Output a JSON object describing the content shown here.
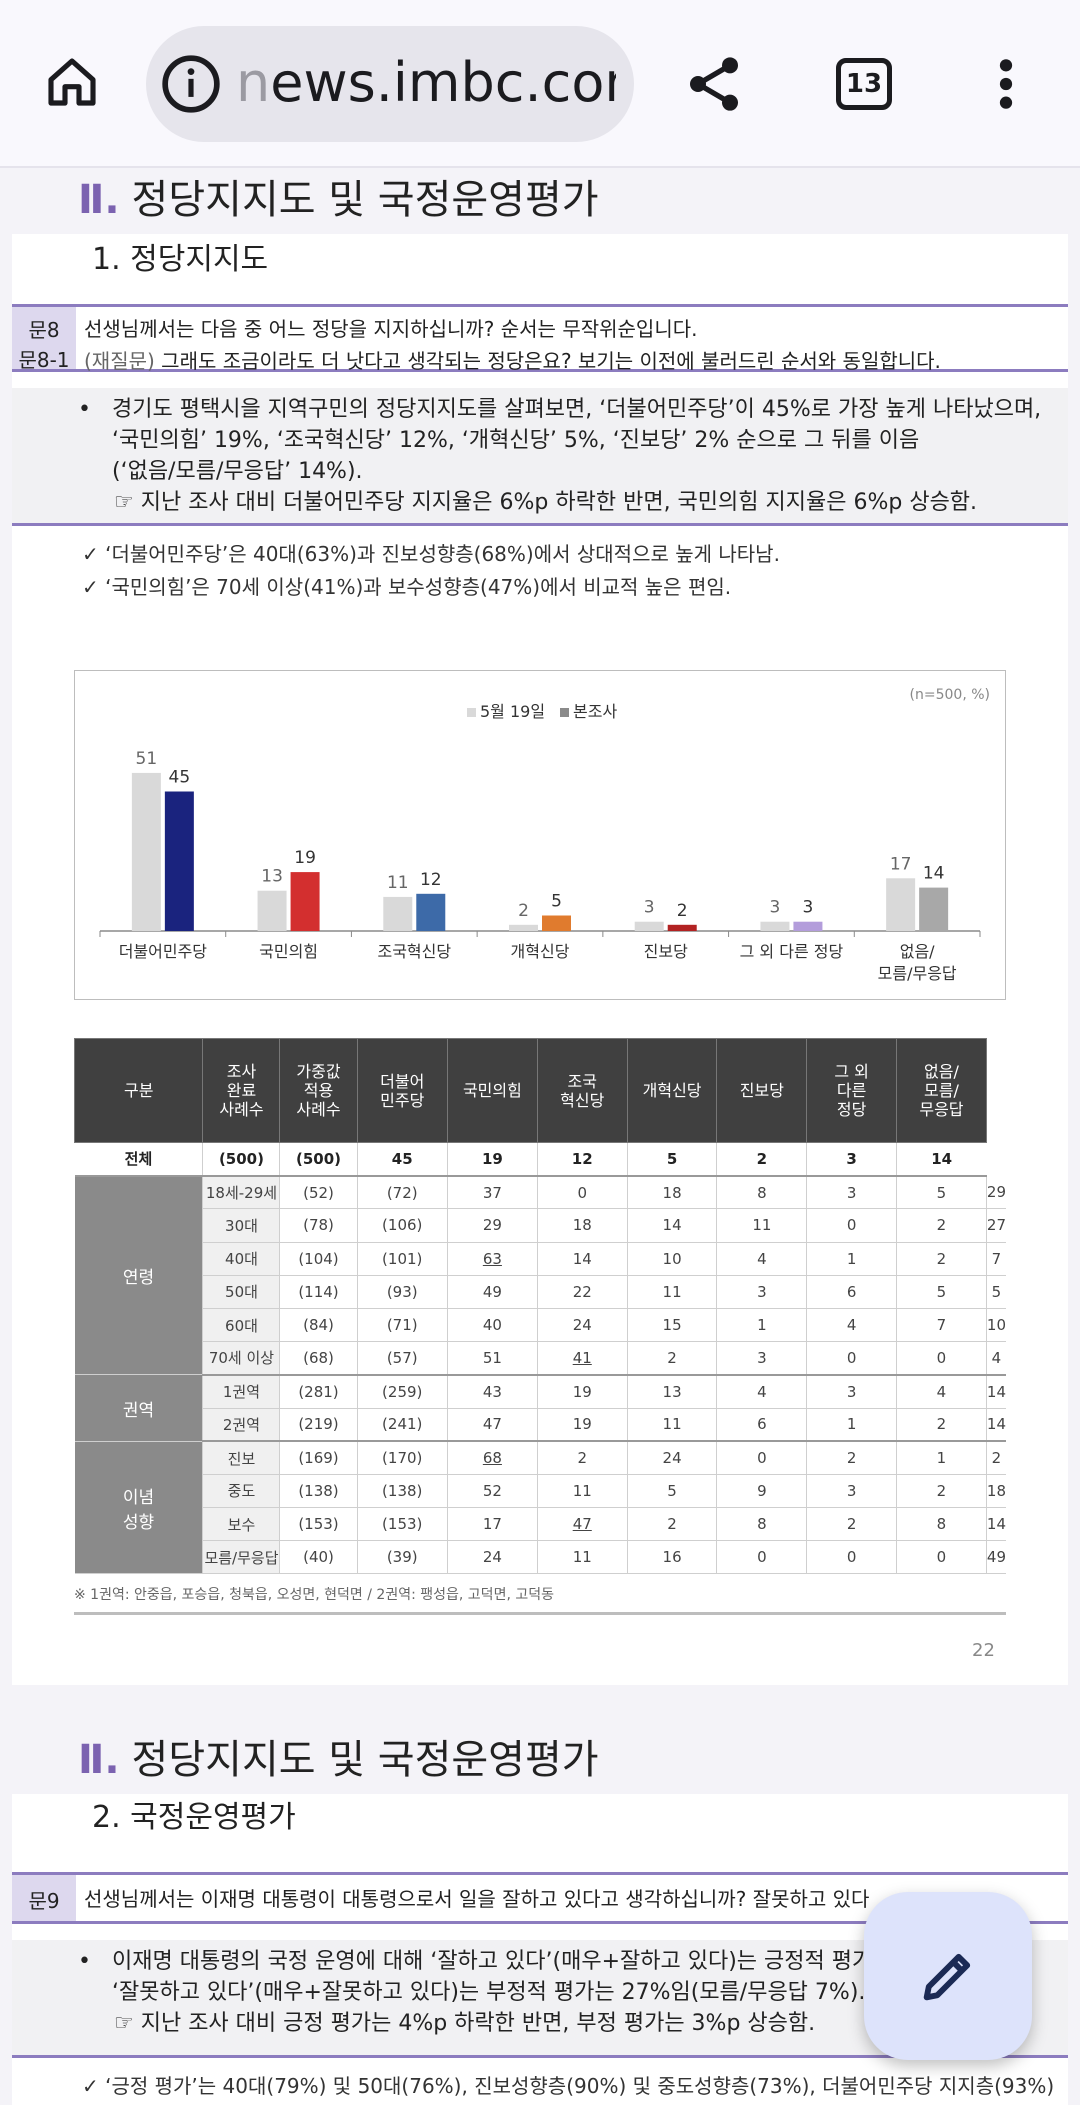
{
  "browser": {
    "url_fade": "n",
    "url": "ews.imbc.com",
    "tab_count": "13"
  },
  "page1": {
    "section_num": "Ⅱ.",
    "section_title": "정당지지도 및 국정운영평가",
    "subtitle": "1. 정당지지도",
    "q_label": [
      "문8",
      "문8-1"
    ],
    "q_line1": "선생님께서는 다음 중 어느 정당을 지지하십니까? 순서는 무작위순입니다.",
    "q_line2_gray": "(재질문)",
    "q_line2": " 그래도 조금이라도 더 낫다고 생각되는 정당은요? 보기는 이전에 불러드린 순서와 동일합니다.",
    "bullet": "•",
    "summary": [
      "경기도 평택시을 지역구민의 정당지지도를 살펴보면, ‘더불어민주당’이 45%로 가장 높게 나타났으며,",
      "‘국민의힘’ 19%, ‘조국혁신당’ 12%, ‘개혁신당’ 5%, ‘진보당’ 2% 순으로 그 뒤를 이음",
      "(‘없음/모름/무응답’ 14%)."
    ],
    "summary_point": "☞ 지난 조사 대비 더불어민주당 지지율은 6%p 하락한 반면, 국민의힘 지지율은 6%p 상승함.",
    "checks": [
      "✓ ‘더불어민주당’은 40대(63%)과 진보성향층(68%)에서 상대적으로 높게 나타남.",
      "✓ ‘국민의힘’은 70세 이상(41%)과 보수성향층(47%)에서 비교적 높은 편임."
    ],
    "footnote": "※ 1권역: 안중읍, 포승읍, 청북읍, 오성면, 현덕면 / 2권역: 팽성읍, 고덕면, 고덕동",
    "page_number": "22"
  },
  "chart_data": {
    "type": "bar",
    "note": "(n=500, %)",
    "categories": [
      "더불어민주당",
      "국민의힘",
      "조국혁신당",
      "개혁신당",
      "진보당",
      "그 외 다른 정당",
      "없음/모름/무응답"
    ],
    "category_lines": [
      [
        "더불어민주당"
      ],
      [
        "국민의힘"
      ],
      [
        "조국혁신당"
      ],
      [
        "개혁신당"
      ],
      [
        "진보당"
      ],
      [
        "그 외 다른 정당"
      ],
      [
        "없음/",
        "모름/무응답"
      ]
    ],
    "series": [
      {
        "name": "5월 19일",
        "values": [
          51,
          13,
          11,
          2,
          3,
          3,
          17
        ],
        "color": "#d9d9d9"
      },
      {
        "name": "본조사",
        "values": [
          45,
          19,
          12,
          5,
          2,
          3,
          14
        ],
        "colors": [
          "#1a237e",
          "#d32f2f",
          "#3d6aa8",
          "#e07b2e",
          "#b22222",
          "#b39ddb",
          "#a8a8a8"
        ]
      }
    ],
    "legend_position": "top-center",
    "ylim": [
      0,
      60
    ]
  },
  "table": {
    "headers": [
      "구분",
      "조사\n완료\n사례수",
      "가중값\n적용\n사례수",
      "더불어\n민주당",
      "국민의힘",
      "조국\n혁신당",
      "개혁신당",
      "진보당",
      "그 외\n다른\n정당",
      "없음/\n모름/\n무응답"
    ],
    "total": [
      "전체",
      "(500)",
      "(500)",
      "45",
      "19",
      "12",
      "5",
      "2",
      "3",
      "14"
    ],
    "groups": [
      {
        "name": "연령",
        "rows": [
          [
            "18세-29세",
            "(52)",
            "(72)",
            "37",
            "0",
            "18",
            "8",
            "3",
            "5",
            "29"
          ],
          [
            "30대",
            "(78)",
            "(106)",
            "29",
            "18",
            "14",
            "11",
            "0",
            "2",
            "27"
          ],
          [
            "40대",
            "(104)",
            "(101)",
            "63",
            "14",
            "10",
            "4",
            "1",
            "2",
            "7"
          ],
          [
            "50대",
            "(114)",
            "(93)",
            "49",
            "22",
            "11",
            "3",
            "6",
            "5",
            "5"
          ],
          [
            "60대",
            "(84)",
            "(71)",
            "40",
            "24",
            "15",
            "1",
            "4",
            "7",
            "10"
          ],
          [
            "70세 이상",
            "(68)",
            "(57)",
            "51",
            "41",
            "2",
            "3",
            "0",
            "0",
            "4"
          ]
        ]
      },
      {
        "name": "권역",
        "rows": [
          [
            "1권역",
            "(281)",
            "(259)",
            "43",
            "19",
            "13",
            "4",
            "3",
            "4",
            "14"
          ],
          [
            "2권역",
            "(219)",
            "(241)",
            "47",
            "19",
            "11",
            "6",
            "1",
            "2",
            "14"
          ]
        ]
      },
      {
        "name": "이념\n성향",
        "rows": [
          [
            "진보",
            "(169)",
            "(170)",
            "68",
            "2",
            "24",
            "0",
            "2",
            "1",
            "2"
          ],
          [
            "중도",
            "(138)",
            "(138)",
            "52",
            "11",
            "5",
            "9",
            "3",
            "2",
            "18"
          ],
          [
            "보수",
            "(153)",
            "(153)",
            "17",
            "47",
            "2",
            "8",
            "2",
            "8",
            "14"
          ],
          [
            "모름/무응답",
            "(40)",
            "(39)",
            "24",
            "11",
            "16",
            "0",
            "0",
            "0",
            "49"
          ]
        ]
      }
    ],
    "underlined": [
      [
        "40대",
        3
      ],
      [
        "70세 이상",
        4
      ],
      [
        "진보",
        3
      ],
      [
        "보수",
        4
      ]
    ]
  },
  "page2": {
    "section_num": "Ⅱ.",
    "section_title": "정당지지도 및 국정운영평가",
    "subtitle": "2. 국정운영평가",
    "q_label": "문9",
    "q_text": "선생님께서는 이재명 대통령이 대통령으로서 일을 잘하고 있다고 생각하십니까? 잘못하고 있다",
    "bullet": "•",
    "summary": [
      "이재명 대통령의 국정 운영에 대해 ‘잘하고 있다’(매우+잘하고 있다)는 긍정적 평가",
      "‘잘못하고 있다’(매우+잘못하고 있다)는 부정적 평가는 27%임(모름/무응답 7%)."
    ],
    "summary_point": "☞ 지난 조사 대비 긍정 평가는 4%p 하락한 반면, 부정 평가는 3%p 상승함.",
    "check": "✓ ‘긍정 평가’는 40대(79%) 및 50대(76%), 진보성향층(90%) 및 중도성향층(73%), 더불어민주당 지지층(93%)"
  }
}
